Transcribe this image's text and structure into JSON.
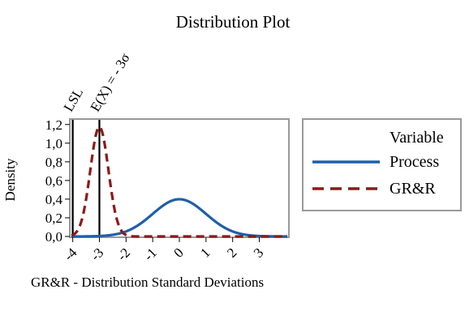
{
  "chart_data": {
    "type": "line",
    "title": "Distribution Plot",
    "xlabel": "GR&R - Distribution Standard Deviations",
    "ylabel": "Density",
    "xlim": [
      -4.05,
      4.05
    ],
    "ylim": [
      0,
      1.25
    ],
    "yticks": [
      "0,0",
      "0,2",
      "0,4",
      "0,6",
      "0,8",
      "1,0",
      "1,2"
    ],
    "ytick_values": [
      0,
      0.2,
      0.4,
      0.6,
      0.8,
      1.0,
      1.2
    ],
    "xticks": [
      "-4",
      "-3",
      "-2",
      "-1",
      "0",
      "1",
      "2",
      "3"
    ],
    "xtick_values": [
      -4,
      -3,
      -2,
      -1,
      0,
      1,
      2,
      3
    ],
    "legend": {
      "title": "Variable",
      "position": "right"
    },
    "series": [
      {
        "name": "Process",
        "mean": 0,
        "sd": 1,
        "color": "#1f5fa8",
        "style": "solid"
      },
      {
        "name": "GR&R",
        "mean": -3,
        "sd": 0.34,
        "color": "#8b1a1a",
        "style": "dashed"
      }
    ],
    "reference_lines": [
      {
        "x": -4,
        "label": "LSL"
      },
      {
        "x": -3,
        "label": "E(X) = - 3σ"
      }
    ],
    "grid": false
  }
}
